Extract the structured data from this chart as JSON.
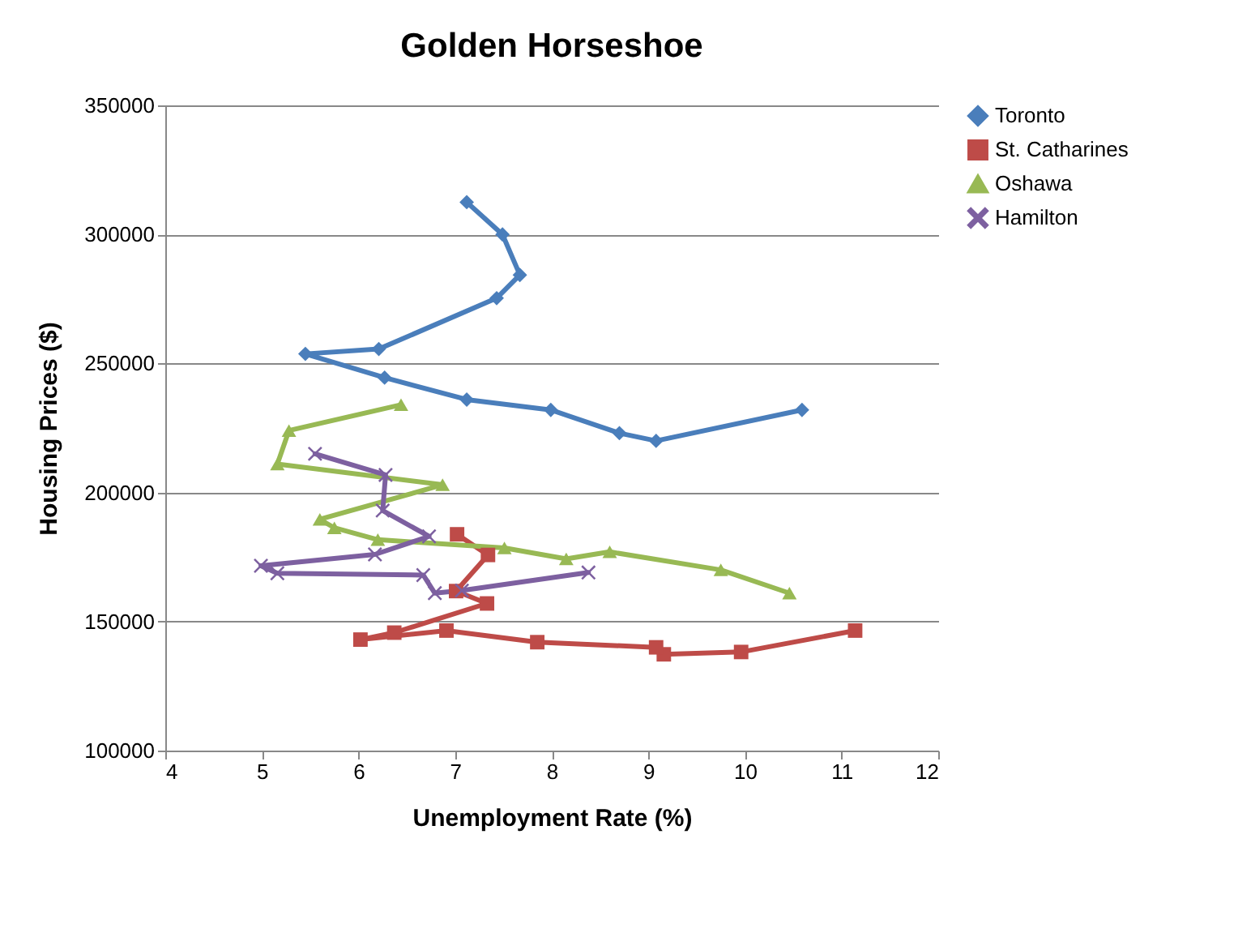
{
  "chart_data": {
    "type": "line",
    "title": "Golden Horseshoe",
    "xlabel": "Unemployment Rate (%)",
    "ylabel": "Housing Prices ($)",
    "xlim": [
      4,
      12
    ],
    "xticks": [
      4,
      5,
      6,
      7,
      8,
      9,
      10,
      11,
      12
    ],
    "ylim": [
      100000,
      350000
    ],
    "yticks": [
      100000,
      150000,
      200000,
      250000,
      300000,
      350000
    ],
    "grid": "y",
    "legend": "right",
    "series": [
      {
        "name": "Toronto",
        "color": "#4a7ebb",
        "marker": "diamond",
        "x": [
          10.59,
          9.08,
          8.7,
          7.99,
          7.12,
          6.27,
          5.45,
          6.21,
          7.43,
          7.67,
          7.49,
          7.12
        ],
        "values": [
          232000,
          220000,
          223000,
          232000,
          236000,
          244500,
          253700,
          255600,
          275300,
          284300,
          300000,
          312500
        ]
      },
      {
        "name": "St. Catharines",
        "color": "#be4b48",
        "marker": "square",
        "x": [
          11.14,
          9.96,
          9.16,
          9.08,
          7.85,
          6.91,
          6.02,
          6.37,
          7.33,
          7.01,
          7.34,
          7.02
        ],
        "values": [
          146500,
          138200,
          137300,
          140000,
          142000,
          146500,
          143000,
          145700,
          157000,
          161800,
          175800,
          183800
        ]
      },
      {
        "name": "Oshawa",
        "color": "#98b954",
        "marker": "triangle",
        "x": [
          6.44,
          5.28,
          5.16,
          6.87,
          5.6,
          5.75,
          6.2,
          7.51,
          8.15,
          8.6,
          9.75,
          10.46
        ],
        "values": [
          234000,
          224000,
          211000,
          203000,
          189600,
          186300,
          181700,
          178500,
          174300,
          177000,
          170000,
          161000
        ]
      },
      {
        "name": "Hamilton",
        "color": "#7d60a0",
        "marker": "cross",
        "x": [
          5.55,
          6.28,
          6.25,
          6.73,
          6.17,
          4.99,
          5.16,
          6.67,
          6.79,
          7.07,
          8.38
        ],
        "values": [
          215000,
          206800,
          193000,
          183000,
          176000,
          171600,
          168700,
          168000,
          161000,
          162000,
          169000
        ]
      }
    ]
  }
}
